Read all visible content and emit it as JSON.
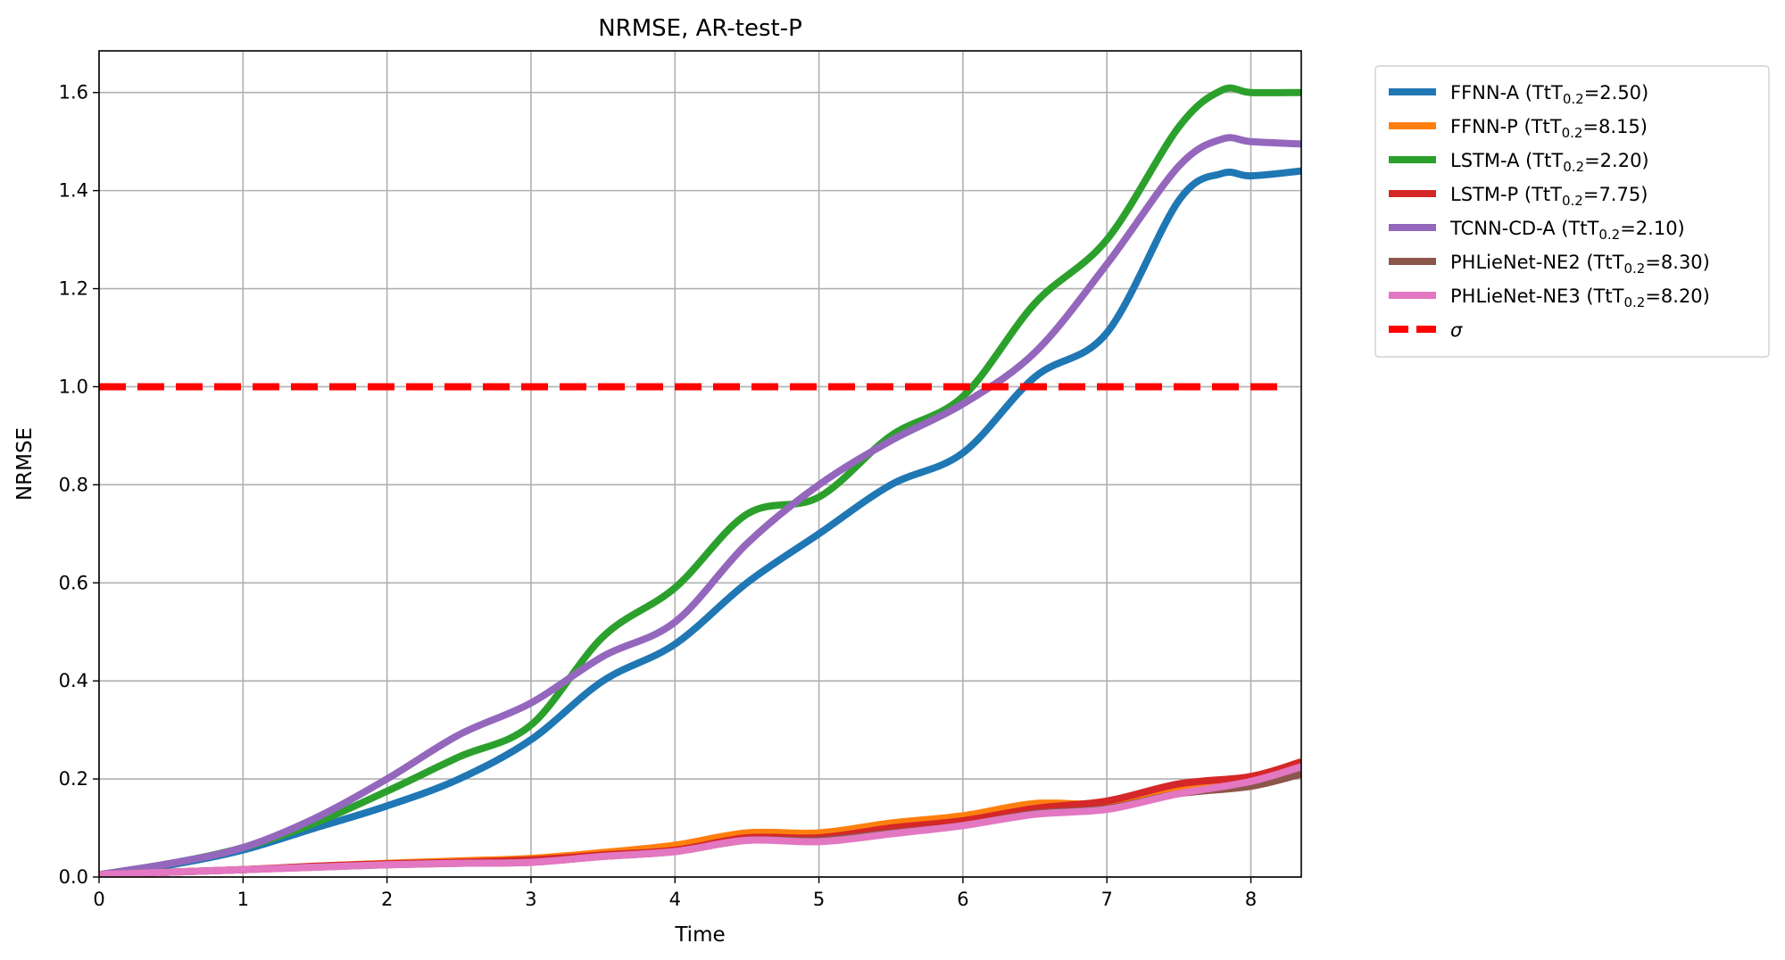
{
  "chart_data": {
    "type": "line",
    "title": "NRMSE, AR-test-P",
    "xlabel": "Time",
    "ylabel": "NRMSE",
    "xlim": [
      0,
      8.35
    ],
    "ylim": [
      0,
      1.685
    ],
    "xticks": [
      0,
      1,
      2,
      3,
      4,
      5,
      6,
      7,
      8
    ],
    "yticks": [
      0.0,
      0.2,
      0.4,
      0.6,
      0.8,
      1.0,
      1.2,
      1.4,
      1.6
    ],
    "xtick_labels": [
      "0",
      "1",
      "2",
      "3",
      "4",
      "5",
      "6",
      "7",
      "8"
    ],
    "ytick_labels": [
      "0.0",
      "0.2",
      "0.4",
      "0.6",
      "0.8",
      "1.0",
      "1.2",
      "1.4",
      "1.6"
    ],
    "grid": true,
    "legend_position": "outside-top-right",
    "series": [
      {
        "name": "FFNN-A (TtT0.2=2.50)",
        "legend_main": "FFNN-A (TtT",
        "legend_sub": "0.2",
        "legend_tail": "=2.50)",
        "color": "#1f77b4",
        "x": [
          0,
          0.5,
          1.0,
          1.5,
          2.0,
          2.5,
          3.0,
          3.5,
          4.0,
          4.5,
          5.0,
          5.5,
          6.0,
          6.5,
          7.0,
          7.5,
          7.8,
          8.0,
          8.35
        ],
        "y": [
          0.005,
          0.025,
          0.055,
          0.1,
          0.145,
          0.2,
          0.28,
          0.4,
          0.475,
          0.6,
          0.7,
          0.8,
          0.865,
          1.02,
          1.11,
          1.38,
          1.435,
          1.43,
          1.44
        ]
      },
      {
        "name": "FFNN-P (TtT0.2=8.15)",
        "legend_main": "FFNN-P (TtT",
        "legend_sub": "0.2",
        "legend_tail": "=8.15)",
        "color": "#ff7f0e",
        "x": [
          0,
          0.5,
          1.0,
          1.5,
          2.0,
          2.5,
          3.0,
          3.5,
          4.0,
          4.5,
          5.0,
          5.5,
          6.0,
          6.5,
          7.0,
          7.5,
          8.0,
          8.35
        ],
        "y": [
          0.005,
          0.01,
          0.015,
          0.022,
          0.028,
          0.033,
          0.038,
          0.05,
          0.065,
          0.09,
          0.09,
          0.11,
          0.125,
          0.15,
          0.15,
          0.18,
          0.2,
          0.225
        ]
      },
      {
        "name": "LSTM-A (TtT0.2=2.20)",
        "legend_main": "LSTM-A (TtT",
        "legend_sub": "0.2",
        "legend_tail": "=2.20)",
        "color": "#2ca02c",
        "x": [
          0,
          0.5,
          1.0,
          1.5,
          2.0,
          2.5,
          3.0,
          3.5,
          4.0,
          4.5,
          5.0,
          5.5,
          6.0,
          6.5,
          7.0,
          7.5,
          7.8,
          8.0,
          8.35
        ],
        "y": [
          0.005,
          0.028,
          0.06,
          0.11,
          0.175,
          0.245,
          0.31,
          0.49,
          0.59,
          0.74,
          0.775,
          0.9,
          0.98,
          1.17,
          1.3,
          1.53,
          1.605,
          1.6,
          1.6
        ]
      },
      {
        "name": "LSTM-P (TtT0.2=7.75)",
        "legend_main": "LSTM-P (TtT",
        "legend_sub": "0.2",
        "legend_tail": "=7.75)",
        "color": "#d62728",
        "x": [
          0,
          0.5,
          1.0,
          1.5,
          2.0,
          2.5,
          3.0,
          3.5,
          4.0,
          4.5,
          5.0,
          5.5,
          6.0,
          6.5,
          7.0,
          7.5,
          8.0,
          8.35
        ],
        "y": [
          0.005,
          0.01,
          0.015,
          0.022,
          0.027,
          0.03,
          0.035,
          0.045,
          0.055,
          0.08,
          0.08,
          0.1,
          0.115,
          0.14,
          0.155,
          0.19,
          0.205,
          0.235
        ]
      },
      {
        "name": "TCNN-CD-A (TtT0.2=2.10)",
        "legend_main": "TCNN-CD-A (TtT",
        "legend_sub": "0.2",
        "legend_tail": "=2.10)",
        "color": "#9467bd",
        "x": [
          0,
          0.5,
          1.0,
          1.5,
          2.0,
          2.5,
          3.0,
          3.5,
          4.0,
          4.5,
          5.0,
          5.5,
          6.0,
          6.5,
          7.0,
          7.5,
          7.8,
          8.0,
          8.35
        ],
        "y": [
          0.005,
          0.028,
          0.06,
          0.12,
          0.2,
          0.29,
          0.355,
          0.45,
          0.52,
          0.68,
          0.8,
          0.89,
          0.965,
          1.07,
          1.25,
          1.45,
          1.505,
          1.5,
          1.495
        ]
      },
      {
        "name": "PHLieNet-NE2 (TtT0.2=8.30)",
        "legend_main": "PHLieNet-NE2 (TtT",
        "legend_sub": "0.2",
        "legend_tail": "=8.30)",
        "color": "#8c564b",
        "x": [
          0,
          0.5,
          1.0,
          1.5,
          2.0,
          2.5,
          3.0,
          3.5,
          4.0,
          4.5,
          5.0,
          5.5,
          6.0,
          6.5,
          7.0,
          7.5,
          8.0,
          8.35
        ],
        "y": [
          0.005,
          0.01,
          0.015,
          0.02,
          0.025,
          0.028,
          0.03,
          0.042,
          0.052,
          0.075,
          0.075,
          0.09,
          0.105,
          0.13,
          0.14,
          0.17,
          0.185,
          0.21
        ]
      },
      {
        "name": "PHLieNet-NE3 (TtT0.2=8.20)",
        "legend_main": "PHLieNet-NE3 (TtT",
        "legend_sub": "0.2",
        "legend_tail": "=8.20)",
        "color": "#e377c2",
        "x": [
          0,
          0.5,
          1.0,
          1.5,
          2.0,
          2.5,
          3.0,
          3.5,
          4.0,
          4.5,
          5.0,
          5.5,
          6.0,
          6.5,
          7.0,
          7.5,
          8.0,
          8.35
        ],
        "y": [
          0.005,
          0.01,
          0.015,
          0.02,
          0.025,
          0.028,
          0.03,
          0.042,
          0.052,
          0.075,
          0.072,
          0.088,
          0.105,
          0.128,
          0.138,
          0.17,
          0.195,
          0.225
        ]
      }
    ],
    "reference_line": {
      "name": "σ",
      "y": 1.0,
      "color": "#ff0000",
      "style": "dashed"
    }
  }
}
